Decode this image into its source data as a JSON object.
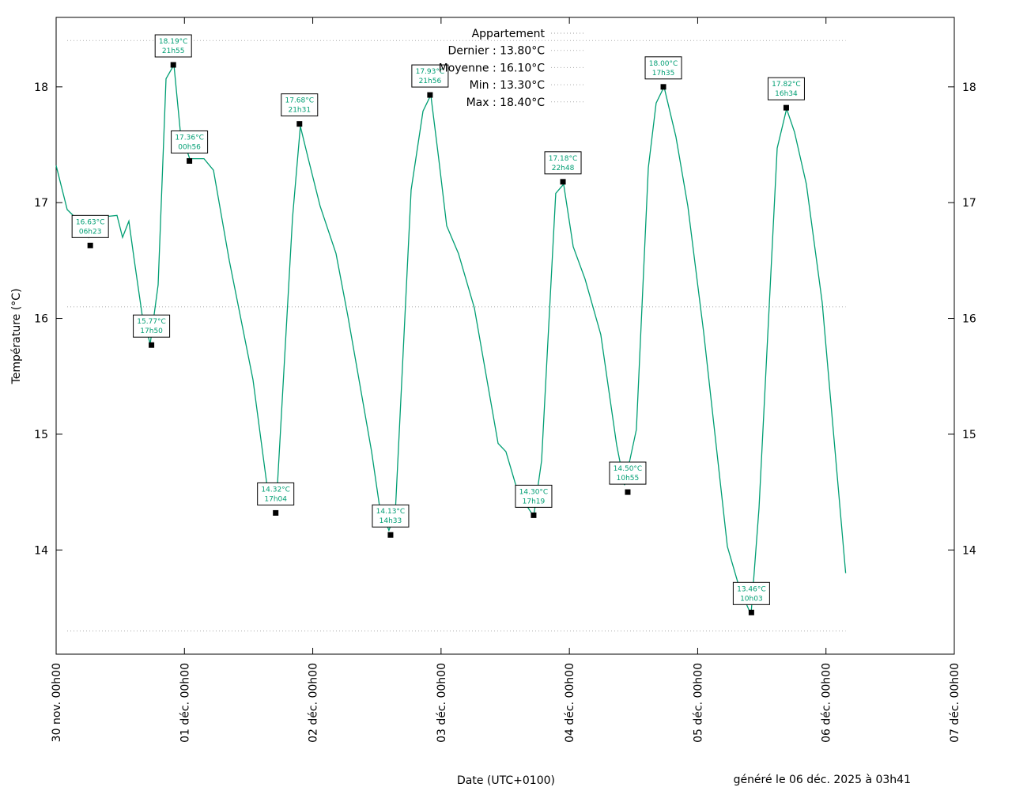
{
  "chart_data": {
    "type": "line",
    "xlabel": "Date (UTC+0100)",
    "ylabel": "Température (°C)",
    "footer": "généré le 06 déc. 2025 à 03h41",
    "xlim": [
      "2025-11-30T00:00",
      "2025-12-07T00:00"
    ],
    "xticks": [
      {
        "value": "2025-11-30T00:00",
        "label": "30 nov. 00h00"
      },
      {
        "value": "2025-12-01T00:00",
        "label": "01 déc. 00h00"
      },
      {
        "value": "2025-12-02T00:00",
        "label": "02 déc. 00h00"
      },
      {
        "value": "2025-12-03T00:00",
        "label": "03 déc. 00h00"
      },
      {
        "value": "2025-12-04T00:00",
        "label": "04 déc. 00h00"
      },
      {
        "value": "2025-12-05T00:00",
        "label": "05 déc. 00h00"
      },
      {
        "value": "2025-12-06T00:00",
        "label": "06 déc. 00h00"
      },
      {
        "value": "2025-12-07T00:00",
        "label": "07 déc. 00h00"
      }
    ],
    "ylim": [
      13.1,
      18.6
    ],
    "yticks": [
      14,
      15,
      16,
      17,
      18
    ],
    "x": [
      "2025-11-30T00:00",
      "2025-11-30T02:04",
      "2025-11-30T04:17",
      "2025-11-30T06:04",
      "2025-11-30T07:15",
      "2025-11-30T11:23",
      "2025-11-30T12:25",
      "2025-11-30T13:36",
      "2025-11-30T14:38",
      "2025-11-30T16:07",
      "2025-11-30T17:36",
      "2025-11-30T19:05",
      "2025-11-30T20:33",
      "2025-11-30T22:02",
      "2025-11-30T23:13",
      "2025-12-01T00:59",
      "2025-12-01T03:39",
      "2025-12-01T05:26",
      "2025-12-01T08:23",
      "2025-12-01T12:49",
      "2025-12-01T15:47",
      "2025-12-01T17:15",
      "2025-12-01T20:13",
      "2025-12-01T21:41",
      "2025-12-01T23:10",
      "2025-12-02T01:23",
      "2025-12-02T04:21",
      "2025-12-02T06:34",
      "2025-12-02T11:00",
      "2025-12-02T12:29",
      "2025-12-02T14:15",
      "2025-12-02T15:26",
      "2025-12-02T18:24",
      "2025-12-02T20:37",
      "2025-12-02T22:05",
      "2025-12-02T23:34",
      "2025-12-03T01:03",
      "2025-12-03T03:16",
      "2025-12-03T06:14",
      "2025-12-03T10:40",
      "2025-12-03T12:08",
      "2025-12-03T14:22",
      "2025-12-03T17:19",
      "2025-12-03T18:48",
      "2025-12-03T21:27",
      "2025-12-03T22:56",
      "2025-12-04T00:43",
      "2025-12-04T02:56",
      "2025-12-04T05:53",
      "2025-12-04T08:50",
      "2025-12-04T10:19",
      "2025-12-04T12:32",
      "2025-12-04T14:46",
      "2025-12-04T16:14",
      "2025-12-04T17:43",
      "2025-12-04T19:56",
      "2025-12-04T22:10",
      "2025-12-05T01:07",
      "2025-12-05T05:33",
      "2025-12-05T07:46",
      "2025-12-05T09:59",
      "2025-12-05T11:28",
      "2025-12-05T14:52",
      "2025-12-05T16:38",
      "2025-12-05T18:07",
      "2025-12-05T20:20",
      "2025-12-05T23:17",
      "2025-12-06T03:41"
    ],
    "series": [
      {
        "name": "Appartement",
        "color": "#009e73",
        "legend_color": "#999999",
        "values": [
          17.32,
          16.94,
          16.84,
          16.7,
          16.87,
          16.89,
          16.7,
          16.84,
          16.5,
          16.02,
          15.78,
          16.29,
          18.07,
          18.19,
          17.62,
          17.38,
          17.38,
          17.28,
          16.5,
          15.47,
          14.44,
          14.44,
          16.87,
          17.66,
          17.38,
          16.97,
          16.56,
          16.02,
          14.85,
          14.38,
          14.17,
          14.31,
          17.11,
          17.79,
          17.93,
          17.38,
          16.8,
          16.56,
          16.09,
          14.92,
          14.85,
          14.5,
          14.29,
          14.77,
          17.08,
          17.16,
          16.62,
          16.34,
          15.86,
          14.91,
          14.56,
          15.04,
          17.3,
          17.86,
          18.0,
          17.57,
          16.97,
          15.88,
          14.03,
          13.68,
          13.44,
          14.36,
          17.47,
          17.81,
          17.61,
          17.16,
          16.14,
          13.8
        ]
      }
    ],
    "last_label": "Dernier : 13.80°C",
    "reference_lines": [
      {
        "label": "Moyenne : 16.10°C",
        "value": 16.1
      },
      {
        "label": "Min : 13.30°C",
        "value": 13.3
      },
      {
        "label": "Max : 18.40°C",
        "value": 18.4
      }
    ],
    "reference_color": "#aaaaaa",
    "annotations": [
      {
        "x": "2025-11-30T06:23",
        "y": 16.63,
        "label": "16.63°C",
        "time": "06h23"
      },
      {
        "x": "2025-11-30T17:50",
        "y": 15.77,
        "label": "15.77°C",
        "time": "17h50"
      },
      {
        "x": "2025-11-30T21:55",
        "y": 18.19,
        "label": "18.19°C",
        "time": "21h55"
      },
      {
        "x": "2025-12-01T00:56",
        "y": 17.36,
        "label": "17.36°C",
        "time": "00h56"
      },
      {
        "x": "2025-12-01T17:04",
        "y": 14.32,
        "label": "14.32°C",
        "time": "17h04"
      },
      {
        "x": "2025-12-01T21:31",
        "y": 17.68,
        "label": "17.68°C",
        "time": "21h31"
      },
      {
        "x": "2025-12-02T14:33",
        "y": 14.13,
        "label": "14.13°C",
        "time": "14h33"
      },
      {
        "x": "2025-12-02T21:56",
        "y": 17.93,
        "label": "17.93°C",
        "time": "21h56"
      },
      {
        "x": "2025-12-03T17:19",
        "y": 14.3,
        "label": "14.30°C",
        "time": "17h19"
      },
      {
        "x": "2025-12-03T22:48",
        "y": 17.18,
        "label": "17.18°C",
        "time": "22h48"
      },
      {
        "x": "2025-12-04T10:55",
        "y": 14.5,
        "label": "14.50°C",
        "time": "10h55"
      },
      {
        "x": "2025-12-04T17:35",
        "y": 18.0,
        "label": "18.00°C",
        "time": "17h35"
      },
      {
        "x": "2025-12-05T10:03",
        "y": 13.46,
        "label": "13.46°C",
        "time": "10h03"
      },
      {
        "x": "2025-12-05T16:34",
        "y": 17.82,
        "label": "17.82°C",
        "time": "16h34"
      }
    ]
  }
}
